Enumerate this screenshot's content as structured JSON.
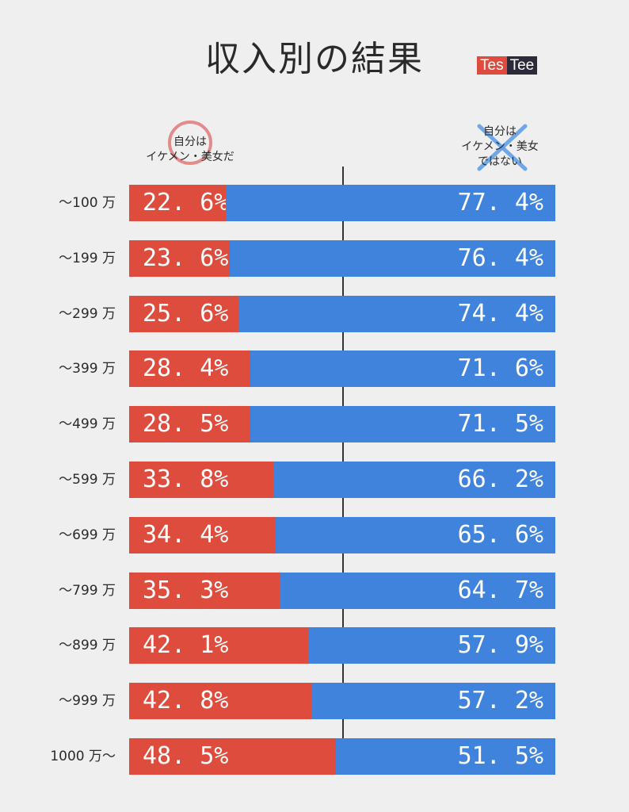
{
  "title": "収入別の結果",
  "logo": {
    "part1": "Tes",
    "part2": "Tee"
  },
  "legend": {
    "left_line1": "自分は",
    "left_line2": "イケメン・美女だ",
    "right_line1": "自分は",
    "right_line2": "イケメン・美女",
    "right_line3": "ではない"
  },
  "colors": {
    "yes": "#de4c3d",
    "no": "#3f83dd"
  },
  "chart_data": {
    "type": "bar",
    "orientation": "horizontal-stacked-100",
    "title": "収入別の結果",
    "categories": [
      "～100 万",
      "～199 万",
      "～299 万",
      "～399 万",
      "～499 万",
      "～599 万",
      "～699 万",
      "～799 万",
      "～899 万",
      "～999 万",
      "1000 万～"
    ],
    "series": [
      {
        "name": "自分はイケメン・美女だ",
        "values": [
          22.6,
          23.6,
          25.6,
          28.4,
          28.5,
          33.8,
          34.4,
          35.3,
          42.1,
          42.8,
          48.5
        ],
        "labels": [
          "22. 6%",
          "23. 6%",
          "25. 6%",
          "28. 4%",
          "28. 5%",
          "33. 8%",
          "34. 4%",
          "35. 3%",
          "42. 1%",
          "42. 8%",
          "48. 5%"
        ]
      },
      {
        "name": "自分はイケメン・美女ではない",
        "values": [
          77.4,
          76.4,
          74.4,
          71.6,
          71.5,
          66.2,
          65.6,
          64.7,
          57.9,
          57.2,
          51.5
        ],
        "labels": [
          "77. 4%",
          "76. 4%",
          "74. 4%",
          "71. 6%",
          "71. 5%",
          "66. 2%",
          "65. 6%",
          "64. 7%",
          "57. 9%",
          "57. 2%",
          "51. 5%"
        ]
      }
    ],
    "xlim": [
      0,
      100
    ],
    "reference_line": 50,
    "unit": "%"
  }
}
